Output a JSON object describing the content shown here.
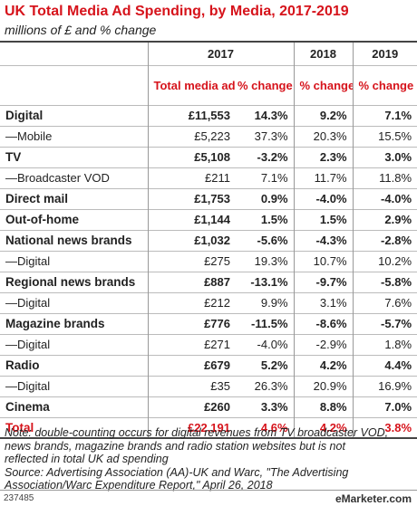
{
  "chart_data": {
    "type": "table",
    "title": "UK Total Media Ad Spending, by Media, 2017-2019",
    "subtitle": "millions of £ and % change",
    "years": [
      "2017",
      "2018",
      "2019"
    ],
    "subheaders": [
      "Total media ad spending",
      "% change",
      "% change",
      "% change"
    ],
    "rows": [
      {
        "label": "Digital",
        "bold": true,
        "spend": "£11,553",
        "chg2017": "14.3%",
        "chg2018": "9.2%",
        "chg2019": "7.1%"
      },
      {
        "label": "—Mobile",
        "bold": false,
        "spend": "£5,223",
        "chg2017": "37.3%",
        "chg2018": "20.3%",
        "chg2019": "15.5%"
      },
      {
        "label": "TV",
        "bold": true,
        "spend": "£5,108",
        "chg2017": "-3.2%",
        "chg2018": "2.3%",
        "chg2019": "3.0%"
      },
      {
        "label": "—Broadcaster VOD",
        "bold": false,
        "spend": "£211",
        "chg2017": "7.1%",
        "chg2018": "11.7%",
        "chg2019": "11.8%"
      },
      {
        "label": "Direct mail",
        "bold": true,
        "spend": "£1,753",
        "chg2017": "0.9%",
        "chg2018": "-4.0%",
        "chg2019": "-4.0%"
      },
      {
        "label": "Out-of-home",
        "bold": true,
        "spend": "£1,144",
        "chg2017": "1.5%",
        "chg2018": "1.5%",
        "chg2019": "2.9%"
      },
      {
        "label": "National news brands",
        "bold": true,
        "spend": "£1,032",
        "chg2017": "-5.6%",
        "chg2018": "-4.3%",
        "chg2019": "-2.8%"
      },
      {
        "label": "—Digital",
        "bold": false,
        "spend": "£275",
        "chg2017": "19.3%",
        "chg2018": "10.7%",
        "chg2019": "10.2%"
      },
      {
        "label": "Regional news brands",
        "bold": true,
        "spend": "£887",
        "chg2017": "-13.1%",
        "chg2018": "-9.7%",
        "chg2019": "-5.8%"
      },
      {
        "label": "—Digital",
        "bold": false,
        "spend": "£212",
        "chg2017": "9.9%",
        "chg2018": "3.1%",
        "chg2019": "7.6%"
      },
      {
        "label": "Magazine brands",
        "bold": true,
        "spend": "£776",
        "chg2017": "-11.5%",
        "chg2018": "-8.6%",
        "chg2019": "-5.7%"
      },
      {
        "label": "—Digital",
        "bold": false,
        "spend": "£271",
        "chg2017": "-4.0%",
        "chg2018": "-2.9%",
        "chg2019": "1.8%"
      },
      {
        "label": "Radio",
        "bold": true,
        "spend": "£679",
        "chg2017": "5.2%",
        "chg2018": "4.2%",
        "chg2019": "4.4%"
      },
      {
        "label": "—Digital",
        "bold": false,
        "spend": "£35",
        "chg2017": "26.3%",
        "chg2018": "20.9%",
        "chg2019": "16.9%"
      },
      {
        "label": "Cinema",
        "bold": true,
        "spend": "£260",
        "chg2017": "3.3%",
        "chg2018": "8.8%",
        "chg2019": "7.0%"
      }
    ],
    "total": {
      "label": "Total",
      "spend": "£22,191",
      "chg2017": "4.6%",
      "chg2018": "4.2%",
      "chg2019": "3.8%"
    },
    "note_lines": [
      "Note: double-counting occurs for digital revenues from TV broadcaster VOD,",
      "news brands, magazine brands and radio station websites but is not",
      "reflected in total UK ad spending",
      "Source: Advertising Association (AA)-UK and Warc, \"The Advertising",
      "Association/Warc Expenditure Report,\" April 26, 2018"
    ],
    "chart_id": "237485",
    "brand": "eMarketer",
    "brand_suffix": ".com",
    "accent_color": "#d6131b"
  }
}
